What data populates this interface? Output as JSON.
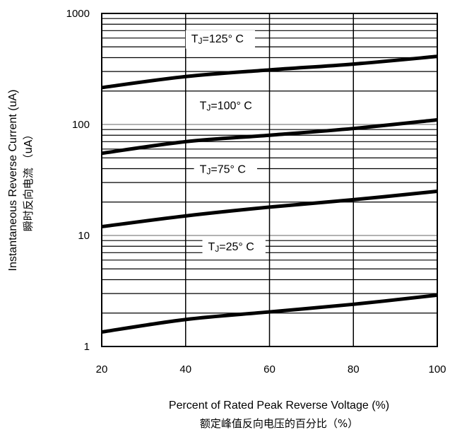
{
  "chart_data": {
    "type": "line",
    "title": "",
    "xlabel": "Percent of Rated Peak Reverse Voltage (%)",
    "xlabel_cn": "额定峰值反向电压的百分比（%）",
    "ylabel": "Instantaneous Reverse Current (uA)",
    "ylabel_cn": "瞬时反向电流 （uA）",
    "xlim": [
      20,
      100
    ],
    "ylim": [
      1,
      1000
    ],
    "yscale": "log",
    "grid": true,
    "x_ticks": [
      20,
      40,
      60,
      80,
      100
    ],
    "y_ticks": [
      1,
      10,
      100,
      1000
    ],
    "x_tick_labels": [
      "20",
      "40",
      "60",
      "80",
      "100"
    ],
    "y_tick_labels": [
      "1",
      "10",
      "100",
      "1000"
    ],
    "series": [
      {
        "name_prefix": "T",
        "name_sub": "J",
        "name_suffix": "=125° C",
        "label_anchor": [
          40,
          600
        ],
        "x": [
          20,
          40,
          60,
          80,
          100
        ],
        "values": [
          215,
          270,
          310,
          350,
          410
        ]
      },
      {
        "name_prefix": "T",
        "name_sub": "J",
        "name_suffix": "=100° C",
        "label_anchor": [
          42,
          150
        ],
        "x": [
          20,
          40,
          60,
          80,
          100
        ],
        "values": [
          55,
          70,
          80,
          92,
          110
        ]
      },
      {
        "name_prefix": "T",
        "name_sub": "J",
        "name_suffix": "=75° C",
        "label_anchor": [
          42,
          40
        ],
        "x": [
          20,
          40,
          60,
          80,
          100
        ],
        "values": [
          12,
          15,
          18,
          21,
          25
        ]
      },
      {
        "name_prefix": "T",
        "name_sub": "J",
        "name_suffix": "=25° C",
        "label_anchor": [
          44,
          8
        ],
        "x": [
          20,
          40,
          60,
          80,
          100
        ],
        "values": [
          1.35,
          1.75,
          2.05,
          2.4,
          2.9
        ]
      }
    ]
  }
}
